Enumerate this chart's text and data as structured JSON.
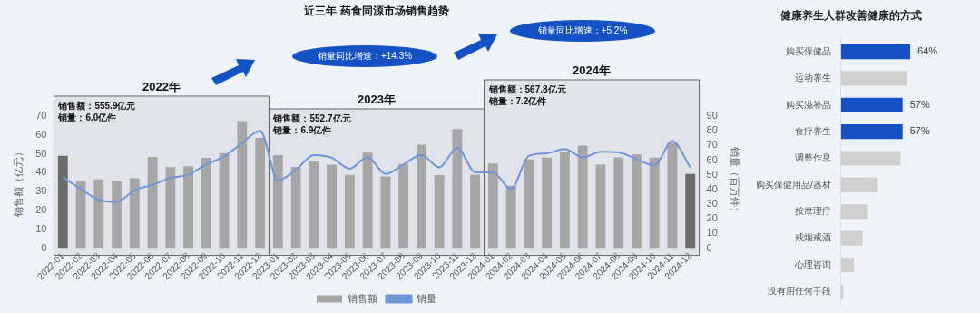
{
  "chart_data": [
    {
      "type": "bar",
      "title": "近三年 药食同源市场销售趋势",
      "ylabel": "销售额（亿元）",
      "y2label": "销量（百万件）",
      "categories": [
        "2022-01",
        "2022-02",
        "2022-03",
        "2022-04",
        "2022-05",
        "2022-06",
        "2022-07",
        "2022-08",
        "2022-09",
        "2022-10",
        "2022-11",
        "2022-12",
        "2023-01",
        "2023-02",
        "2023-03",
        "2023-04",
        "2023-05",
        "2023-06",
        "2023-07",
        "2023-08",
        "2023-09",
        "2023-10",
        "2023-11",
        "2023-12",
        "2024-01",
        "2024-02",
        "2024-03",
        "2024-04",
        "2024-05",
        "2024-06",
        "2024-07",
        "2024-08",
        "2024-09",
        "2024-10",
        "2024-11",
        "2024-12"
      ],
      "series": [
        {
          "name": "销售额",
          "type": "bar",
          "color": "#a6a6a6",
          "colors": [
            "#6b6b6b",
            "#a6a6a6",
            "#a6a6a6",
            "#a6a6a6",
            "#a6a6a6",
            "#a6a6a6",
            "#a6a6a6",
            "#a6a6a6",
            "#a6a6a6",
            "#a6a6a6",
            "#a6a6a6",
            "#a6a6a6",
            "#a6a6a6",
            "#a6a6a6",
            "#a6a6a6",
            "#a6a6a6",
            "#a6a6a6",
            "#a6a6a6",
            "#a6a6a6",
            "#a6a6a6",
            "#a6a6a6",
            "#a6a6a6",
            "#a6a6a6",
            "#a6a6a6",
            "#a6a6a6",
            "#a6a6a6",
            "#a6a6a6",
            "#a6a6a6",
            "#a6a6a6",
            "#a6a6a6",
            "#a6a6a6",
            "#a6a6a6",
            "#a6a6a6",
            "#a6a6a6",
            "#a6a6a6",
            "#6b6b6b"
          ],
          "values": [
            49,
            35.4,
            36.4,
            35.9,
            37.1,
            48.4,
            42.9,
            43.4,
            47.9,
            50.4,
            67.4,
            58.4,
            49.3,
            43.1,
            45.9,
            44.3,
            38.9,
            50.6,
            38,
            44.6,
            54.9,
            38.7,
            63.1,
            39,
            44.9,
            33.1,
            47,
            48,
            51.3,
            54.4,
            44.3,
            48.1,
            49.7,
            48,
            55.7,
            39.3
          ]
        },
        {
          "name": "销量",
          "type": "line",
          "axis": "y2",
          "color": "#6f96d8",
          "values": [
            48.2,
            40.4,
            33,
            31.6,
            39.5,
            43.2,
            47.8,
            50.2,
            57,
            62.5,
            71.7,
            80,
            46.3,
            53.3,
            63.4,
            61.6,
            54.2,
            62.1,
            50.6,
            57,
            63.4,
            55.1,
            68.4,
            51.8,
            51.5,
            40.4,
            62.9,
            64.7,
            67.6,
            61.9,
            65.8,
            65.3,
            60.7,
            56.4,
            73,
            55.1
          ]
        }
      ],
      "ylim": [
        0,
        70
      ],
      "yticks": [
        0,
        10,
        20,
        30,
        40,
        50,
        60,
        70
      ],
      "y2lim": [
        0,
        90
      ],
      "y2ticks": [
        0,
        10,
        20,
        30,
        40,
        50,
        60,
        70,
        80,
        90
      ],
      "bands": [
        {
          "axis": "x",
          "from": "2022-01",
          "to": "2022-12",
          "label": "2022年"
        },
        {
          "axis": "x",
          "from": "2023-01",
          "to": "2023-12",
          "label": "2023年"
        },
        {
          "axis": "x",
          "from": "2024-01",
          "to": "2024-12",
          "label": "2024年"
        }
      ],
      "annotations": [
        "销售额：555.9亿元",
        "销量：6.0亿件",
        "销售额：552.7亿元",
        "销量：6.9亿件",
        "销售额：567.8亿元",
        "销量：7.2亿件",
        "销量同比增速：+14.3%",
        "销量同比增速：+5.2%"
      ],
      "legend": "bottom",
      "grid": false
    },
    {
      "type": "bar",
      "orientation": "horizontal",
      "title": "健康养生人群改善健康的方式",
      "categories": [
        "购买保健品",
        "运动养生",
        "购买滋补品",
        "食疗养生",
        "调整作息",
        "购买保健用品/器材",
        "按摩理疗",
        "戒烟戒酒",
        "心理咨询",
        "没有用任何手段"
      ],
      "values": [
        64,
        61,
        57,
        57,
        55,
        34,
        25,
        20,
        12,
        2
      ],
      "colors": [
        "#1451c4",
        "#d0cece",
        "#1451c4",
        "#1451c4",
        "#d0cece",
        "#d0cece",
        "#d0cece",
        "#d0cece",
        "#d0cece",
        "#d0cece"
      ],
      "value_labels": [
        "64%",
        null,
        "57%",
        "57%",
        null,
        null,
        null,
        null,
        null,
        null
      ],
      "tick_labels": "y",
      "legend": false
    }
  ]
}
